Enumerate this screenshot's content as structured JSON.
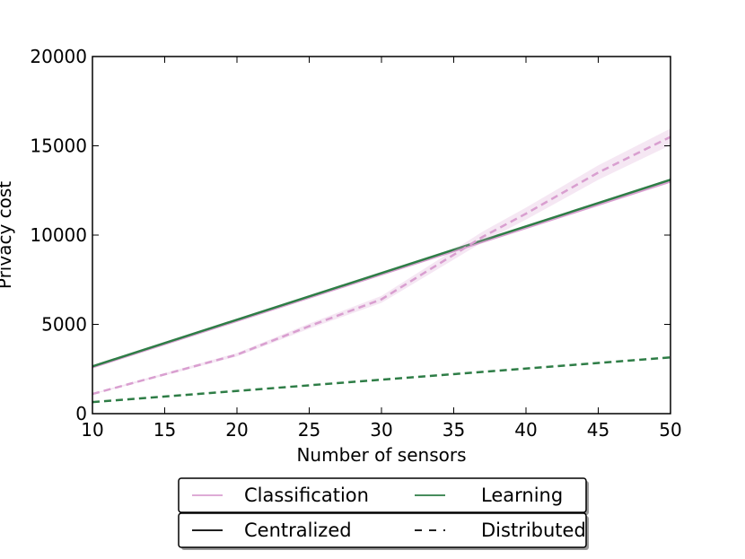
{
  "chart_data": {
    "type": "line",
    "title": "",
    "xlabel": "Number of sensors",
    "ylabel": "Privacy cost",
    "xlim": [
      10,
      50
    ],
    "ylim": [
      0,
      20000
    ],
    "xticks": [
      10,
      15,
      20,
      25,
      30,
      35,
      40,
      45,
      50
    ],
    "yticks": [
      0,
      5000,
      10000,
      15000,
      20000
    ],
    "grid": false,
    "series": [
      {
        "task": "Classification",
        "method": "Centralized",
        "color": "#d99fd0",
        "style": "solid",
        "x": [
          10,
          50
        ],
        "y": [
          2600,
          13000
        ]
      },
      {
        "task": "Learning",
        "method": "Centralized",
        "color": "#2e7d46",
        "style": "solid",
        "x": [
          10,
          50
        ],
        "y": [
          2650,
          13100
        ]
      },
      {
        "task": "Classification",
        "method": "Distributed",
        "color": "#d99fd0",
        "style": "dashed",
        "x": [
          10,
          15,
          20,
          25,
          30,
          32,
          35,
          37,
          40,
          45,
          50
        ],
        "y": [
          1100,
          2200,
          3300,
          4900,
          6400,
          7400,
          8900,
          9900,
          11200,
          13500,
          15500
        ]
      },
      {
        "task": "Learning",
        "method": "Distributed",
        "color": "#2e7d46",
        "style": "dashed",
        "x": [
          10,
          50
        ],
        "y": [
          650,
          3150
        ]
      }
    ],
    "legend": {
      "placement": "bottom",
      "rows": [
        [
          {
            "label": "Classification",
            "color": "#d99fd0",
            "style": "solid"
          },
          {
            "label": "Learning",
            "color": "#2e7d46",
            "style": "solid"
          }
        ],
        [
          {
            "label": "Centralized",
            "color": "#000000",
            "style": "solid"
          },
          {
            "label": "Distributed",
            "color": "#000000",
            "style": "dashed"
          }
        ]
      ]
    }
  }
}
